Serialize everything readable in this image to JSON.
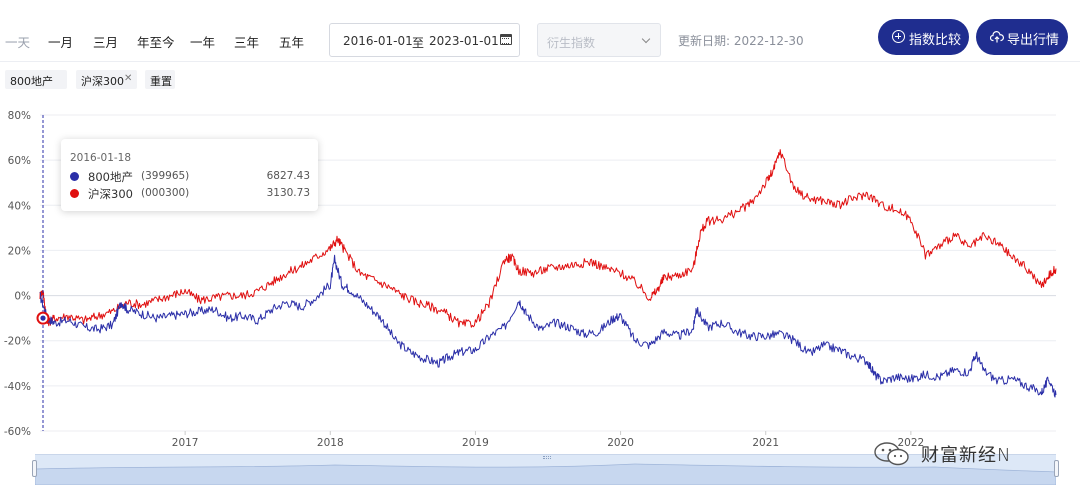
{
  "toolbar": {
    "ranges": [
      "一天",
      "一月",
      "三月",
      "年至今",
      "一年",
      "三年",
      "五年"
    ],
    "date_start": "2016-01-01",
    "date_sep": "至",
    "date_end": "2023-01-01",
    "derive_placeholder": "衍生指数",
    "update_date": "更新日期: 2022-12-30",
    "compare_button": "指数比较",
    "export_button": "导出行情"
  },
  "tags": {
    "items": [
      "800地产",
      "沪深300"
    ],
    "reset": "重置"
  },
  "tooltip": {
    "date": "2016-01-18",
    "rows": [
      {
        "name": "800地产",
        "code": "(399965)",
        "value": "6827.43",
        "color": "#2b2fa8"
      },
      {
        "name": "沪深300",
        "code": "(000300)",
        "value": "3130.73",
        "color": "#e01010"
      }
    ]
  },
  "watermark": "财富新经N",
  "chart_data": {
    "type": "line",
    "ylim": [
      -60,
      80
    ],
    "yticks": [
      "80%",
      "60%",
      "40%",
      "20%",
      "0%",
      "-20%",
      "-40%",
      "-60%"
    ],
    "yunit": "%",
    "xtick_labels": [
      "2017",
      "2018",
      "2019",
      "2020",
      "2021",
      "2022"
    ],
    "x_range": [
      2016.0,
      2023.0
    ],
    "series": [
      {
        "name": "800地产",
        "color": "#2b2fa8",
        "x": [
          2016.0,
          2016.05,
          2016.1,
          2016.2,
          2016.3,
          2016.4,
          2016.5,
          2016.56,
          2016.6,
          2016.7,
          2016.8,
          2016.9,
          2017.0,
          2017.1,
          2017.2,
          2017.3,
          2017.4,
          2017.5,
          2017.6,
          2017.7,
          2017.8,
          2017.9,
          2018.0,
          2018.03,
          2018.08,
          2018.15,
          2018.25,
          2018.35,
          2018.45,
          2018.55,
          2018.65,
          2018.75,
          2018.82,
          2018.9,
          2019.0,
          2019.1,
          2019.2,
          2019.3,
          2019.35,
          2019.45,
          2019.55,
          2019.65,
          2019.75,
          2019.85,
          2019.95,
          2020.0,
          2020.1,
          2020.2,
          2020.3,
          2020.4,
          2020.5,
          2020.52,
          2020.6,
          2020.7,
          2020.8,
          2020.9,
          2021.0,
          2021.1,
          2021.2,
          2021.3,
          2021.4,
          2021.5,
          2021.6,
          2021.7,
          2021.75,
          2021.8,
          2021.9,
          2022.0,
          2022.1,
          2022.2,
          2022.3,
          2022.4,
          2022.45,
          2022.5,
          2022.6,
          2022.7,
          2022.8,
          2022.9,
          2022.95,
          2023.0
        ],
        "y": [
          0,
          -10,
          -12,
          -11,
          -14,
          -15,
          -13,
          -3,
          -6,
          -8,
          -10,
          -9,
          -8,
          -7,
          -6,
          -10,
          -9,
          -11,
          -6,
          -3,
          -5,
          -1,
          5,
          16,
          5,
          2,
          -4,
          -10,
          -20,
          -25,
          -28,
          -30,
          -27,
          -25,
          -24,
          -18,
          -14,
          -2,
          -8,
          -15,
          -12,
          -14,
          -17,
          -16,
          -10,
          -9,
          -20,
          -22,
          -16,
          -18,
          -15,
          -6,
          -14,
          -12,
          -16,
          -18,
          -18,
          -17,
          -20,
          -26,
          -22,
          -24,
          -27,
          -29,
          -35,
          -38,
          -36,
          -37,
          -35,
          -36,
          -33,
          -34,
          -26,
          -33,
          -38,
          -37,
          -40,
          -43,
          -37,
          -44
        ]
      },
      {
        "name": "沪深300",
        "color": "#e01010",
        "x": [
          2016.0,
          2016.02,
          2016.05,
          2016.1,
          2016.2,
          2016.3,
          2016.4,
          2016.5,
          2016.6,
          2016.7,
          2016.8,
          2016.9,
          2017.0,
          2017.1,
          2017.2,
          2017.3,
          2017.4,
          2017.5,
          2017.6,
          2017.7,
          2017.8,
          2017.9,
          2018.0,
          2018.05,
          2018.1,
          2018.2,
          2018.3,
          2018.4,
          2018.5,
          2018.6,
          2018.7,
          2018.8,
          2018.9,
          2019.0,
          2019.1,
          2019.2,
          2019.25,
          2019.3,
          2019.4,
          2019.5,
          2019.6,
          2019.7,
          2019.8,
          2019.9,
          2020.0,
          2020.1,
          2020.2,
          2020.25,
          2020.3,
          2020.4,
          2020.5,
          2020.55,
          2020.6,
          2020.7,
          2020.8,
          2020.9,
          2021.0,
          2021.05,
          2021.1,
          2021.2,
          2021.3,
          2021.4,
          2021.5,
          2021.6,
          2021.7,
          2021.8,
          2021.9,
          2022.0,
          2022.1,
          2022.2,
          2022.3,
          2022.4,
          2022.5,
          2022.6,
          2022.7,
          2022.8,
          2022.9,
          2022.95,
          2023.0
        ],
        "y": [
          0,
          2,
          -12,
          -10,
          -9,
          -11,
          -9,
          -7,
          -3,
          -4,
          -2,
          0,
          2,
          -2,
          -1,
          0,
          0,
          2,
          6,
          10,
          13,
          17,
          21,
          25,
          20,
          10,
          7,
          4,
          0,
          -3,
          -5,
          -8,
          -13,
          -12,
          -3,
          16,
          17,
          11,
          10,
          12,
          13,
          14,
          15,
          12,
          10,
          6,
          -1,
          2,
          8,
          9,
          12,
          28,
          33,
          34,
          37,
          41,
          50,
          55,
          64,
          47,
          43,
          42,
          40,
          43,
          45,
          40,
          38,
          34,
          18,
          22,
          27,
          21,
          26,
          23,
          17,
          12,
          4,
          9,
          12
        ]
      }
    ],
    "hover_date": "2016-01-18",
    "grid": "horizontal"
  }
}
